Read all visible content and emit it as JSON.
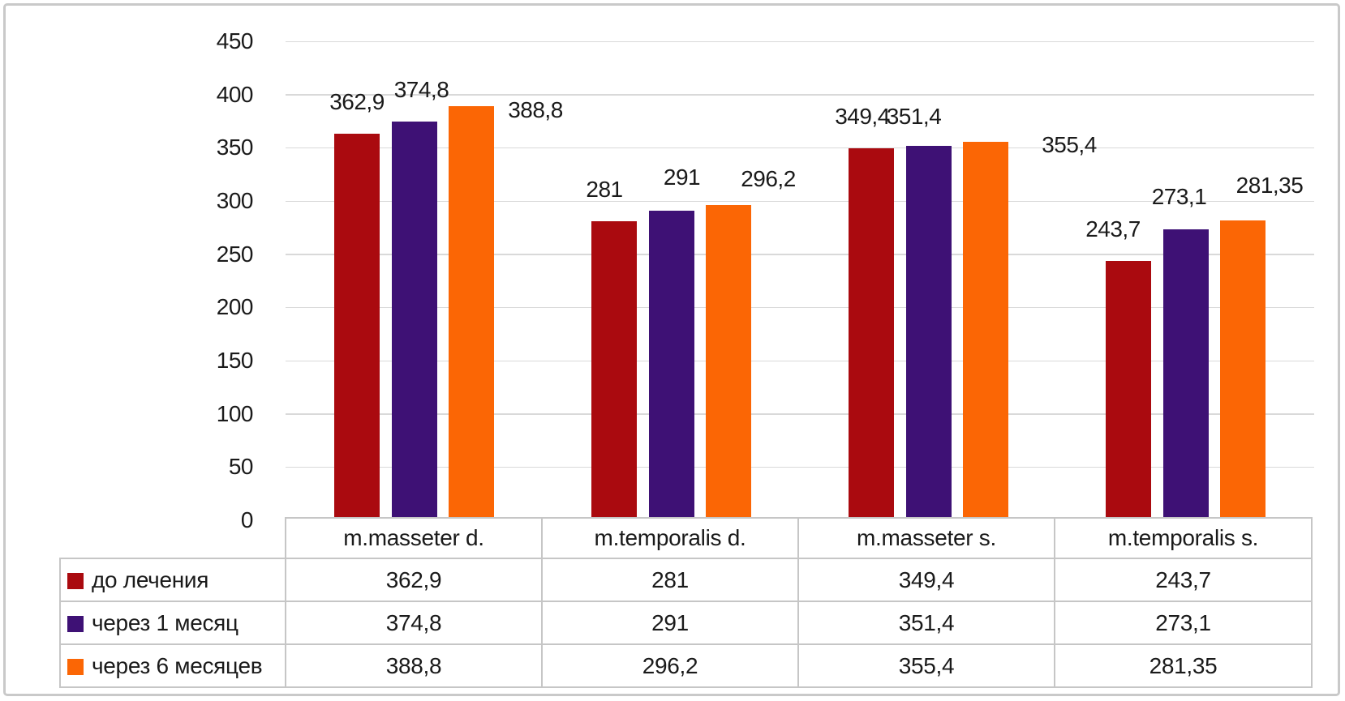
{
  "chart_data": {
    "type": "bar",
    "title": "",
    "xlabel": "",
    "ylabel": "",
    "categories": [
      "m.masseter d.",
      "m.temporalis d.",
      "m.masseter s.",
      "m.temporalis s."
    ],
    "series": [
      {
        "name": "до лечения",
        "color": "#aa0a0f",
        "values": [
          362.9,
          281,
          349.4,
          243.7
        ],
        "display": [
          "362,9",
          "281",
          "349,4",
          "243,7"
        ]
      },
      {
        "name": "через 1 месяц",
        "color": "#3e1175",
        "values": [
          374.8,
          291,
          351.4,
          273.1
        ],
        "display": [
          "374,8",
          "291",
          "351,4",
          "273,1"
        ]
      },
      {
        "name": "через 6 месяцев",
        "color": "#fb6605",
        "values": [
          388.8,
          296.2,
          355.4,
          281.35
        ],
        "display": [
          "388,8",
          "296,2",
          "355,4",
          "281,35"
        ]
      }
    ],
    "ylim": [
      0,
      450
    ],
    "ytick_step": 50,
    "ytick_labels": [
      "0",
      "50",
      "100",
      "150",
      "200",
      "250",
      "300",
      "350",
      "400",
      "450"
    ],
    "grid": true,
    "legend_position": "data-table-left",
    "has_data_table": true
  },
  "colors": {
    "gridline": "#d9d9d9",
    "table_border": "#c6c6c6",
    "frame_border": "#c9c9c9",
    "text": "#1a1a1a",
    "background": "#ffffff"
  }
}
